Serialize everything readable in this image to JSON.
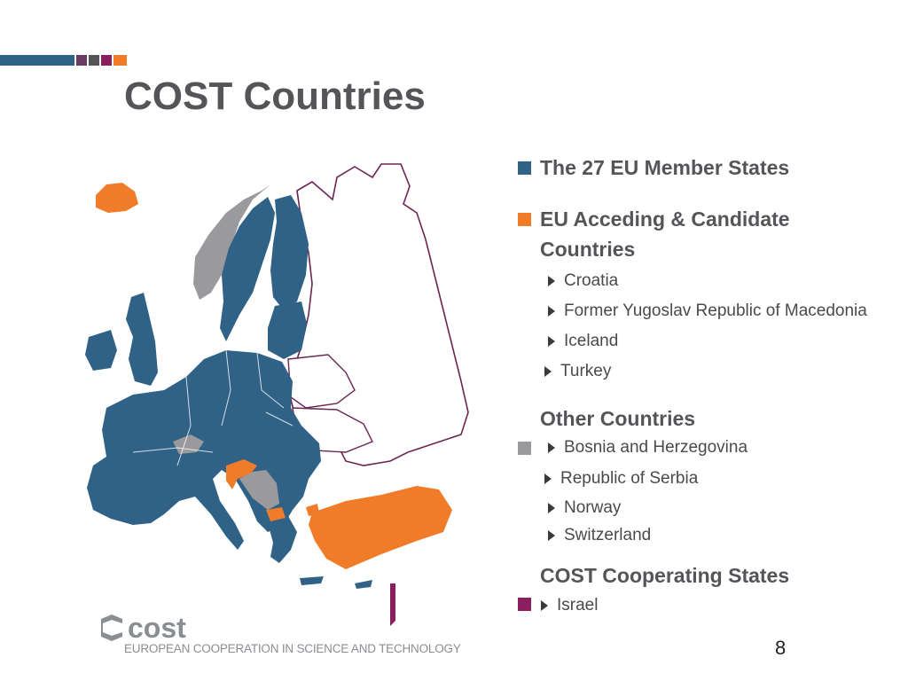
{
  "title": "COST Countries",
  "colors": {
    "eu_member": "#2f6286",
    "acceding": "#f07c2a",
    "other": "#9a9a9c",
    "cooperating": "#8b1e5e",
    "non_cost_border": "#6b2553"
  },
  "legend": {
    "eu_members": "The 27 EU Member States",
    "acceding_heading_line1": "EU Acceding & Candidate",
    "acceding_heading_line2": "Countries",
    "acceding_items": [
      "Croatia",
      "Former Yugoslav Republic of Macedonia",
      "Iceland",
      "Turkey"
    ],
    "other_heading": "Other Countries",
    "other_items": [
      "Bosnia and Herzegovina",
      "Republic of Serbia",
      "Norway",
      "Switzerland"
    ],
    "cooperating_heading": "COST Cooperating States",
    "cooperating_items": [
      "Israel"
    ]
  },
  "footer": {
    "logo_word": "cost",
    "tagline": "EUROPEAN COOPERATION IN SCIENCE AND TECHNOLOGY",
    "page_number": "8"
  }
}
